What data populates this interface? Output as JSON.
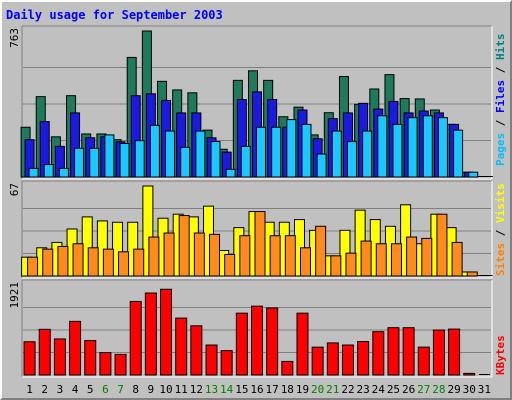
{
  "chart_data": {
    "type": "bar",
    "title": "Daily usage for September 2003",
    "days": [
      "1",
      "2",
      "3",
      "4",
      "5",
      "6",
      "7",
      "8",
      "9",
      "10",
      "11",
      "12",
      "13",
      "14",
      "15",
      "16",
      "17",
      "18",
      "19",
      "20",
      "21",
      "22",
      "23",
      "24",
      "25",
      "26",
      "27",
      "28",
      "29",
      "30",
      "31"
    ],
    "weekend_days": [
      "6",
      "7",
      "13",
      "14",
      "20",
      "21",
      "27",
      "28"
    ],
    "panels": [
      {
        "name": "hits-files-pages",
        "ymax_label": "763",
        "ymax": 763,
        "legend": [
          {
            "text": "Pages",
            "color": "#00c0ff"
          },
          {
            "text": " / ",
            "color": "#000000"
          },
          {
            "text": "Files",
            "color": "#0000ff"
          },
          {
            "text": " / ",
            "color": "#000000"
          },
          {
            "text": "Hits",
            "color": "#008080"
          }
        ],
        "series": [
          {
            "name": "Hits",
            "color": "#1e7a5a",
            "values": [
              260,
              420,
              210,
              425,
              225,
              225,
              195,
              625,
              763,
              500,
              455,
              440,
              245,
              145,
              505,
              555,
              505,
              315,
              365,
              220,
              336,
              525,
              380,
              460,
              535,
              410,
              408,
              350,
              275,
              25,
              0
            ]
          },
          {
            "name": "Files",
            "color": "#1a1ae0",
            "values": [
              195,
              290,
              160,
              335,
              205,
              210,
              184,
              425,
              435,
              400,
              335,
              335,
              205,
              130,
              405,
              445,
              405,
              260,
              350,
              200,
              305,
              335,
              385,
              355,
              395,
              335,
              345,
              335,
              275,
              25,
              0
            ]
          },
          {
            "name": "Pages",
            "color": "#1ac8ff",
            "values": [
              45,
              65,
              45,
              150,
              150,
              220,
              175,
              190,
              270,
              240,
              155,
              240,
              185,
              40,
              160,
              260,
              260,
              300,
              275,
              120,
              240,
              185,
              240,
              320,
              275,
              310,
              320,
              310,
              245,
              25,
              0
            ]
          }
        ]
      },
      {
        "name": "visits-sites",
        "ymax_label": "67",
        "ymax": 67,
        "legend": [
          {
            "text": "Sites",
            "color": "#ff8000"
          },
          {
            "text": " / ",
            "color": "#000000"
          },
          {
            "text": "Visits",
            "color": "#ffff00"
          }
        ],
        "series": [
          {
            "name": "Visits",
            "color": "#ffff00",
            "values": [
              14,
              21,
              25,
              35,
              44,
              41,
              40,
              40,
              67,
              43,
              46,
              44,
              52,
              19,
              36,
              48,
              40,
              40,
              42,
              34,
              15,
              34,
              49,
              42,
              37,
              53,
              24,
              46,
              36,
              3,
              0
            ]
          },
          {
            "name": "Sites",
            "color": "#ff8a1e",
            "values": [
              14,
              20,
              22,
              24,
              21,
              20,
              18,
              20,
              29,
              32,
              45,
              32,
              31,
              16,
              30,
              48,
              30,
              30,
              21,
              37,
              15,
              17,
              26,
              24,
              24,
              29,
              28,
              46,
              25,
              3,
              0
            ]
          }
        ]
      },
      {
        "name": "kbytes",
        "ymax_label": "1921",
        "ymax": 1921,
        "legend": [
          {
            "text": "KBytes",
            "color": "#ff0000"
          }
        ],
        "series": [
          {
            "name": "KBytes",
            "color": "#ff0000",
            "values": [
              710,
              975,
              770,
              1145,
              735,
              480,
              440,
              1570,
              1750,
              1830,
              1215,
              1050,
              640,
              520,
              1320,
              1470,
              1430,
              290,
              1320,
              595,
              685,
              640,
              715,
              925,
              1010,
              1010,
              595,
              960,
              980,
              35,
              0
            ]
          }
        ]
      }
    ]
  }
}
